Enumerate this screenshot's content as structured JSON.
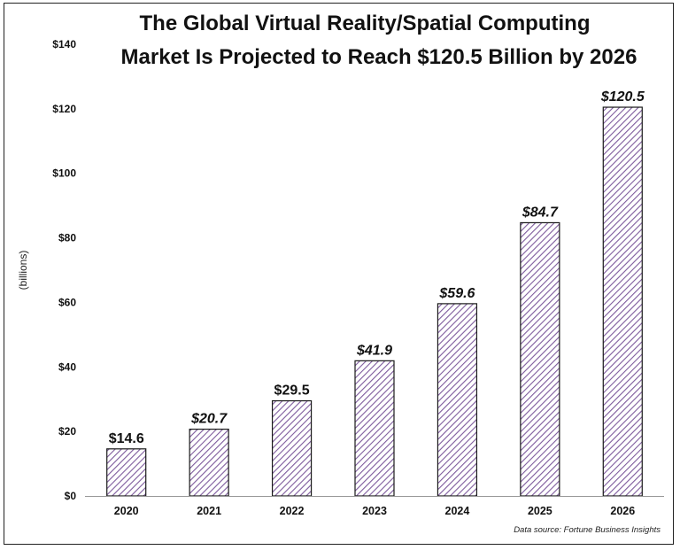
{
  "chart_data": {
    "type": "bar",
    "title_lines": [
      "The Global Virtual Reality/Spatial Computing",
      "Market Is Projected to Reach $120.5 Billion by 2026"
    ],
    "ylabel": "(billions)",
    "xlabel": "",
    "categories": [
      "2020",
      "2021",
      "2022",
      "2023",
      "2024",
      "2025",
      "2026"
    ],
    "values": [
      14.6,
      20.7,
      29.5,
      41.9,
      59.6,
      84.7,
      120.5
    ],
    "data_labels": [
      "$14.6",
      "$20.7",
      "$29.5",
      "$41.9",
      "$59.6",
      "$84.7",
      "$120.5"
    ],
    "italic_labels": [
      false,
      true,
      false,
      true,
      true,
      true,
      true
    ],
    "ylim": [
      0,
      140
    ],
    "yticks": [
      0,
      20,
      40,
      60,
      80,
      100,
      120,
      140
    ],
    "ytick_labels": [
      "$0",
      "$20",
      "$40",
      "$60",
      "$80",
      "$100",
      "$120",
      "$140"
    ],
    "grid": false,
    "legend": "none",
    "bar_fill": "hatched",
    "bar_color": "#7d5a9c",
    "source": "Data source:  Fortune Business Insights"
  }
}
